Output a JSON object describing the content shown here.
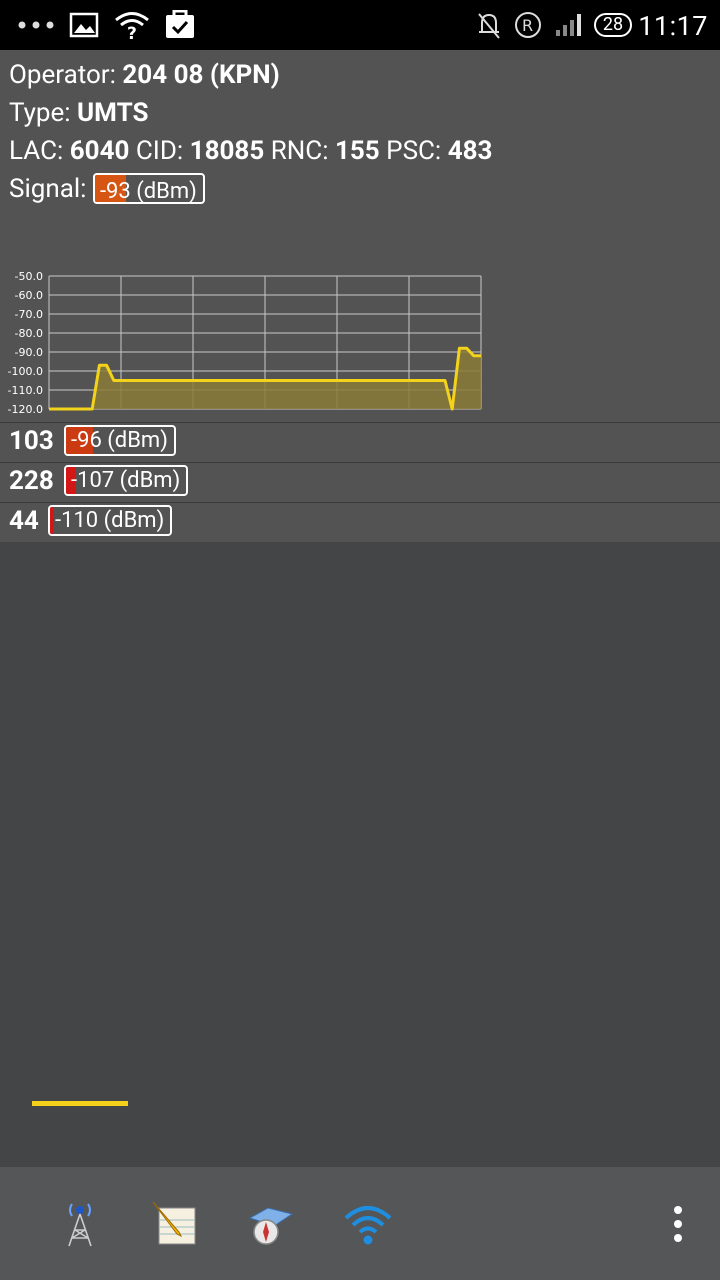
{
  "status_bar": {
    "time": "11:17",
    "battery_level": "28",
    "icons": [
      "more-dots-icon",
      "image-icon",
      "wifi-question-icon",
      "clipboard-check-icon",
      "bell-off-icon",
      "roaming-r-icon",
      "cell-signal-icon",
      "battery-icon"
    ]
  },
  "info": {
    "operator_label": "Operator: ",
    "operator_value": "204 08 (KPN)",
    "type_label": "Type: ",
    "type_value": "UMTS",
    "lac_label": "LAC: ",
    "lac_value": "6040",
    "cid_label": " CID: ",
    "cid_value": "18085",
    "rnc_label": " RNC: ",
    "rnc_value": "155",
    "psc_label": " PSC: ",
    "psc_value": "483",
    "signal_label": "Signal: ",
    "signal_meter": {
      "value": -93,
      "label": "-93 (dBm)",
      "fill_fraction": 0.29,
      "color": "#d65512"
    }
  },
  "chart_data": {
    "type": "area",
    "y_ticks": [
      "-50.0",
      "-60.0",
      "-70.0",
      "-80.0",
      "-90.0",
      "-100.0",
      "-110.0",
      "-120.0"
    ],
    "ylim": [
      -120,
      -50
    ],
    "xlim": [
      0,
      60
    ],
    "grid": true,
    "series": [
      {
        "color": "#f2d21a",
        "x": [
          0,
          6,
          7,
          8,
          9,
          55,
          56,
          57,
          58,
          59,
          60
        ],
        "y": [
          -120,
          -120,
          -97,
          -97,
          -105,
          -105,
          -120,
          -88,
          -88,
          -92,
          -92
        ]
      }
    ]
  },
  "neighbors": [
    {
      "code": "103",
      "meter": {
        "value": -96,
        "label": "-96 (dBm)",
        "fill_fraction": 0.25,
        "color": "#cc3a12"
      }
    },
    {
      "code": "228",
      "meter": {
        "value": -107,
        "label": "-107 (dBm)",
        "fill_fraction": 0.08,
        "color": "#d31616"
      }
    },
    {
      "code": "44",
      "meter": {
        "value": -110,
        "label": "-110 (dBm)",
        "fill_fraction": 0.03,
        "color": "#d31616"
      }
    }
  ],
  "bottom_nav": {
    "items": [
      {
        "name": "cell-tower-icon",
        "selected": true
      },
      {
        "name": "notepad-icon",
        "selected": false
      },
      {
        "name": "compass-map-icon",
        "selected": false
      },
      {
        "name": "wifi-icon",
        "selected": false
      }
    ],
    "overflow": "overflow-menu-icon",
    "accent_color": "#f2d21a"
  }
}
